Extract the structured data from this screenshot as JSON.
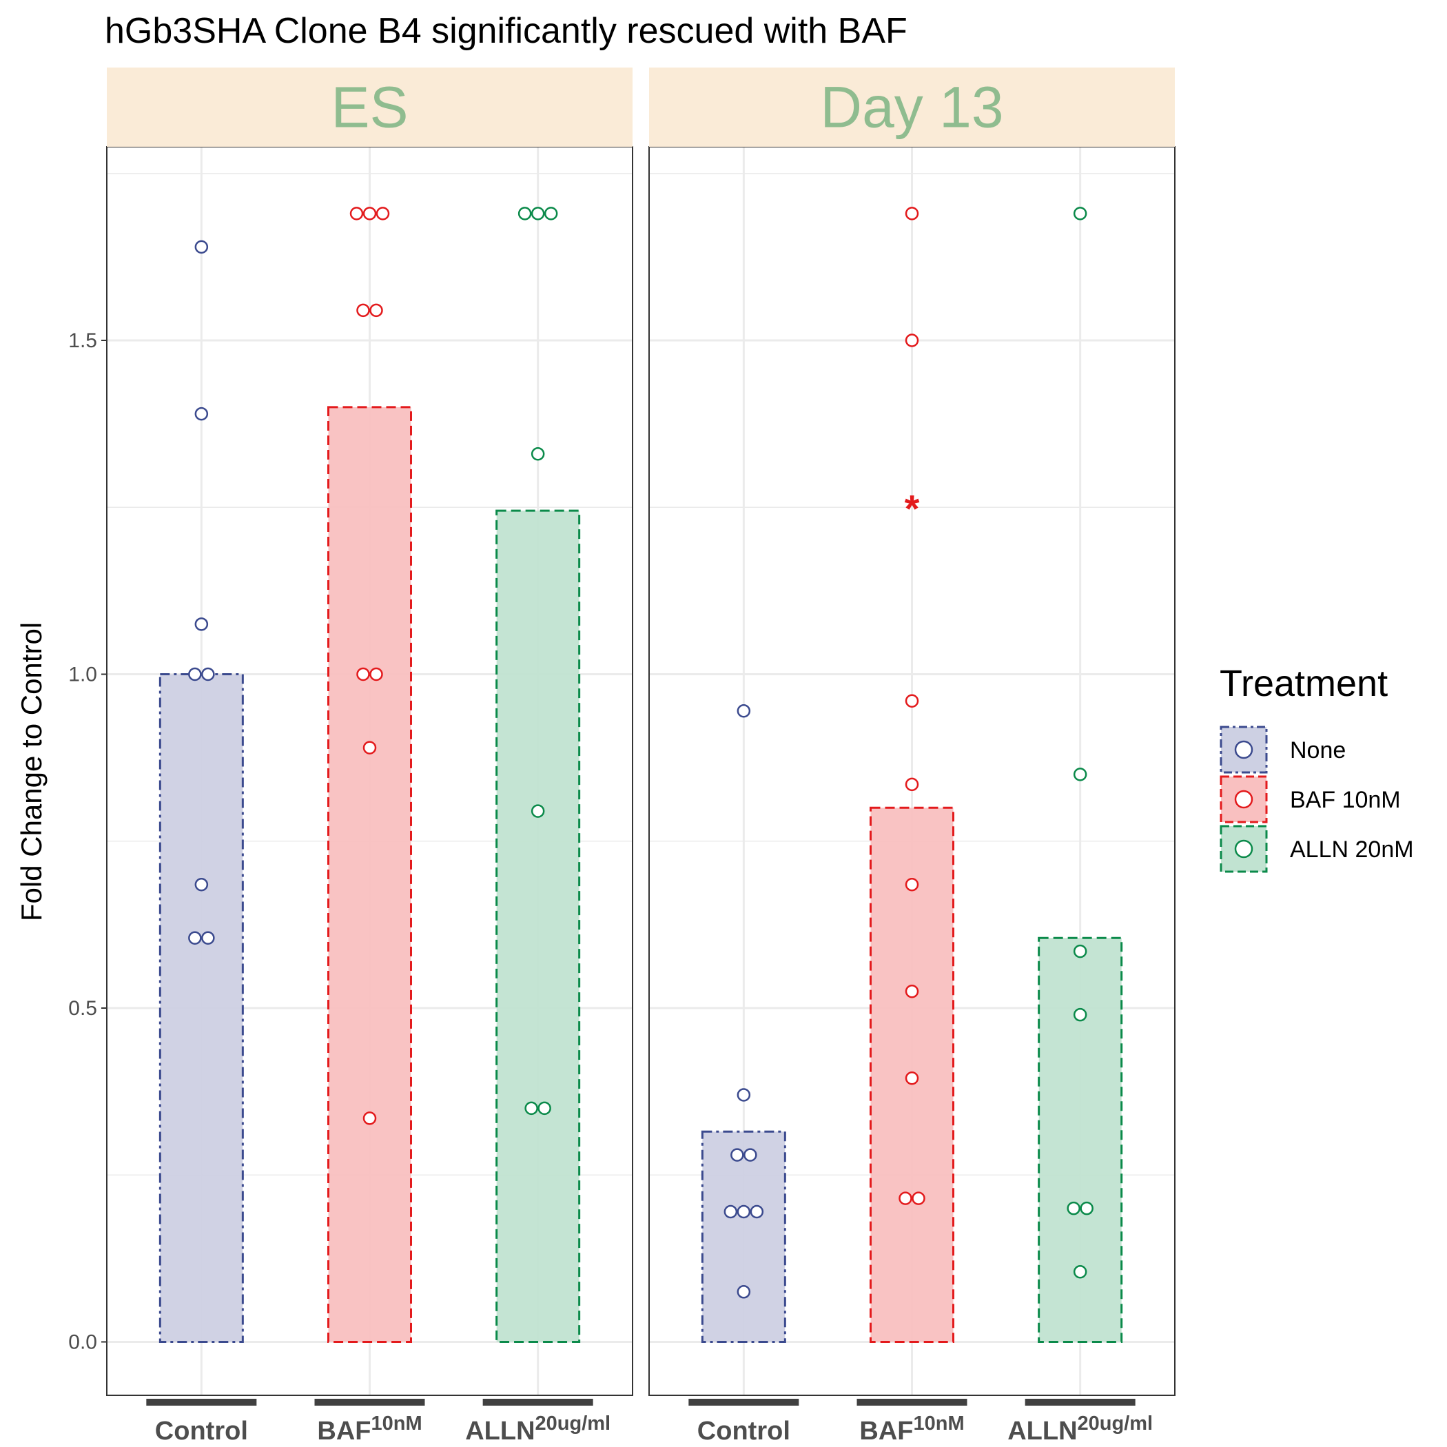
{
  "colors": {
    "strip_bg": "#FAEBD7",
    "strip_text": "#8FBC8F",
    "panel_border": "#333333",
    "grid": "#EBEBEB",
    "axis_bar": "#404040"
  },
  "chart_data": {
    "type": "bar",
    "title": "hGb3SHA Clone B4 significantly rescued with BAF",
    "xlabel": "",
    "ylabel": "Fold Change to Control",
    "ylim": [
      -0.08,
      1.79
    ],
    "yticks": [
      0.0,
      0.5,
      1.0,
      1.5
    ],
    "ytick_labels": [
      "0.0",
      "0.5",
      "1.0",
      "1.5"
    ],
    "grid": true,
    "legend": {
      "title": "Treatment",
      "placement": "right",
      "entries": [
        {
          "label": "None",
          "color": "#3B4A8E",
          "fill": "#CDD0E3"
        },
        {
          "label": "BAF 10nM",
          "color": "#E31A1C",
          "fill": "#F9C0C0"
        },
        {
          "label": "ALLN 20nM",
          "color": "#0B8A4A",
          "fill": "#C1E3D1"
        }
      ]
    },
    "categories": [
      {
        "base": "Control",
        "sup": ""
      },
      {
        "base": "BAF",
        "sup": "10nM"
      },
      {
        "base": "ALLN",
        "sup": "20ug/ml"
      }
    ],
    "panels": [
      {
        "label": "ES",
        "bars": [
          1.0,
          1.4,
          1.245
        ],
        "points": [
          [
            1.64,
            1.39,
            1.075,
            1.0,
            1.0,
            0.685,
            0.605,
            0.605
          ],
          [
            1.69,
            1.69,
            1.69,
            1.545,
            1.545,
            1.0,
            1.0,
            0.89,
            0.335
          ],
          [
            1.69,
            1.69,
            1.69,
            1.33,
            0.795,
            0.35,
            0.35
          ]
        ],
        "annotations": []
      },
      {
        "label": "Day 13",
        "bars": [
          0.315,
          0.8,
          0.605
        ],
        "points": [
          [
            0.945,
            0.37,
            0.28,
            0.28,
            0.195,
            0.195,
            0.195,
            0.075
          ],
          [
            1.69,
            1.5,
            0.96,
            0.835,
            0.685,
            0.525,
            0.395,
            0.215,
            0.215
          ],
          [
            1.69,
            0.85,
            0.585,
            0.49,
            0.2,
            0.2,
            0.105
          ]
        ],
        "annotations": [
          {
            "text": "*",
            "category": 1,
            "y": 1.255,
            "color": "#E31A1C"
          }
        ]
      }
    ]
  }
}
